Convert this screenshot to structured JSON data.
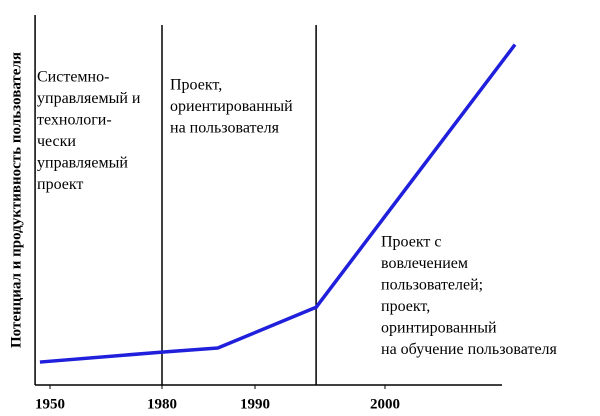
{
  "chart_data": {
    "type": "line",
    "y_label": "Потенциал и продуктивность пользователя",
    "x": [
      1947.3,
      1980,
      1986,
      1994.7,
      2010
    ],
    "series": [
      {
        "color": "#1f1fdc",
        "values": [
          6.2,
          8.9,
          10,
          21,
          92
        ]
      }
    ],
    "xlim": [
      1946,
      2009
    ],
    "ylim": [
      0,
      100
    ],
    "xticks": [
      1950,
      1980,
      1990,
      2000
    ],
    "dividers": [
      1980,
      1994.7
    ],
    "annotations": [
      {
        "lines": [
          "Системно-",
          "управляемый и",
          "технологи-",
          "чески",
          "управляемый",
          "проект"
        ]
      },
      {
        "lines": [
          "Проект,",
          "ориентированный",
          "на пользователя"
        ]
      },
      {
        "lines": [
          "Проект с",
          "вовлечением",
          "пользователей;",
          "проект,",
          "оринтированный",
          "на обучение пользователя"
        ]
      }
    ]
  }
}
